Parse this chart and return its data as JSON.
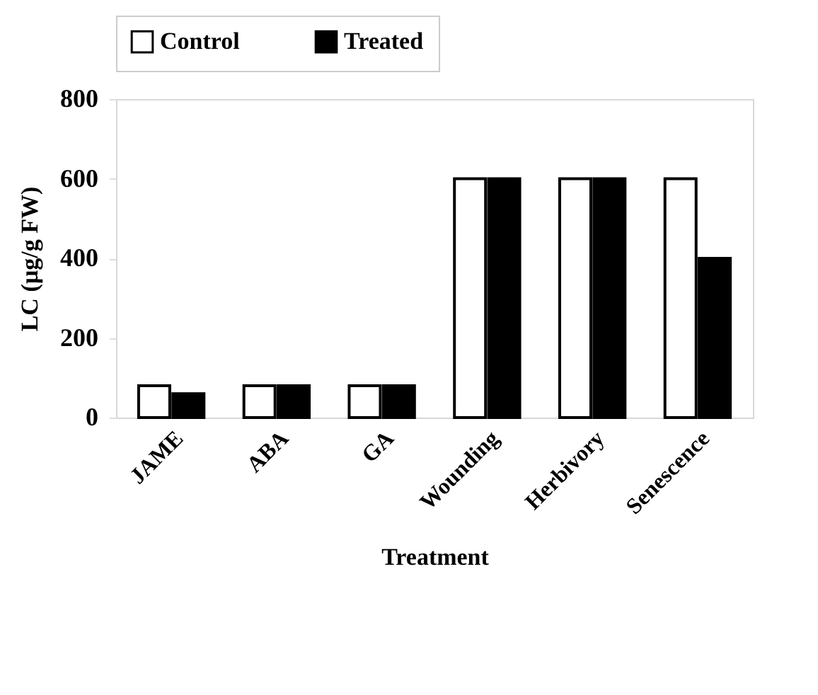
{
  "chart_data": {
    "type": "bar",
    "xlabel": "Treatment",
    "ylabel": "LC (µg/g FW)",
    "categories": [
      "JAME",
      "ABA",
      "GA",
      "Wounding",
      "Herbivory",
      "Senescence"
    ],
    "series": [
      {
        "name": "Control",
        "color": "#ffffff",
        "values": [
          80,
          80,
          80,
          600,
          600,
          600
        ]
      },
      {
        "name": "Treated",
        "color": "#000000",
        "values": [
          60,
          80,
          80,
          600,
          600,
          400
        ]
      }
    ],
    "ylim": [
      0,
      800
    ],
    "yticks": [
      0,
      200,
      400,
      600,
      800
    ],
    "grid": false,
    "legend": "top"
  }
}
